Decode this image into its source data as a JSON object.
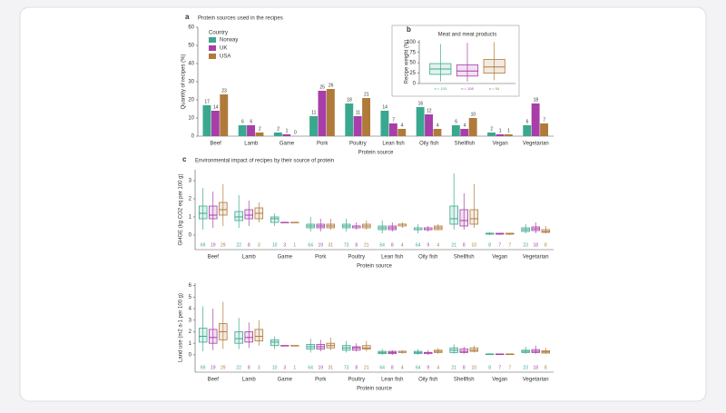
{
  "chart_data": [
    {
      "type": "bar",
      "panel": "a",
      "title": "Protein sources used in the recipes",
      "ylabel": "Quantity of recipes (%)",
      "xlabel": "Protein source",
      "legend_title": "Country",
      "legend": "upper left",
      "categories": [
        "Beef",
        "Lamb",
        "Game",
        "Pork",
        "Poultry",
        "Lean fish",
        "Oily fish",
        "Shellfish",
        "Vegan",
        "Vegetarian"
      ],
      "series": [
        {
          "name": "Norway",
          "color": "#3aa88f",
          "values": [
            17,
            6,
            2,
            11,
            18,
            14,
            16,
            6,
            2,
            6
          ]
        },
        {
          "name": "UK",
          "color": "#a83ea8",
          "values": [
            14,
            6,
            1,
            25,
            11,
            7,
            12,
            4,
            1,
            18
          ]
        },
        {
          "name": "USA",
          "color": "#b07a3a",
          "values": [
            23,
            2,
            0,
            26,
            21,
            4,
            4,
            10,
            1,
            7
          ]
        }
      ],
      "ylim": [
        0,
        60
      ],
      "yticks": [
        0,
        10,
        20,
        30,
        40,
        50,
        60
      ]
    },
    {
      "type": "box",
      "panel": "b",
      "title": "Meat and meat products",
      "ylabel": "Recipe weight (%)",
      "series": [
        {
          "name": "Norway",
          "color": "#3aa88f",
          "values": [
            [
              5,
              22,
              35,
              48,
              95
            ]
          ],
          "n": [
            "n = 103"
          ]
        },
        {
          "name": "UK",
          "color": "#a83ea8",
          "values": [
            [
              5,
              18,
              30,
              45,
              98
            ]
          ],
          "n": [
            "n = 108"
          ]
        },
        {
          "name": "USA",
          "color": "#b07a3a",
          "values": [
            [
              8,
              25,
              40,
              58,
              100
            ]
          ],
          "n": [
            "n = 54"
          ]
        }
      ],
      "ylim": [
        0,
        105
      ],
      "yticks": [
        0,
        25,
        50,
        75,
        100
      ]
    },
    {
      "type": "box",
      "panel": "c",
      "title": "Environmental impact of recipes by their source of protein",
      "ylabel": "GHGE (kg CO2 eq per 100 g)",
      "xlabel": "Protein source",
      "categories": [
        "Beef",
        "Lamb",
        "Game",
        "Pork",
        "Poultry",
        "Lean fish",
        "Oily fish",
        "Shellfish",
        "Vegan",
        "Vegetarian"
      ],
      "series": [
        {
          "name": "Norway",
          "color": "#3aa88f",
          "n": [
            "69",
            "22",
            "10",
            "64",
            "73",
            "64",
            "64",
            "21",
            "8",
            "23"
          ],
          "values": [
            [
              0.3,
              0.9,
              1.2,
              1.6,
              2.6
            ],
            [
              0.4,
              0.8,
              1.0,
              1.3,
              2.2
            ],
            [
              0.5,
              0.7,
              0.9,
              1.0,
              1.2
            ],
            [
              0.2,
              0.4,
              0.5,
              0.6,
              1.0
            ],
            [
              0.2,
              0.4,
              0.5,
              0.6,
              0.9
            ],
            [
              0.1,
              0.3,
              0.4,
              0.5,
              0.8
            ],
            [
              0.1,
              0.3,
              0.3,
              0.4,
              0.6
            ],
            [
              0.3,
              0.6,
              0.9,
              1.6,
              3.4
            ],
            [
              0.0,
              0.05,
              0.1,
              0.1,
              0.15
            ],
            [
              0.1,
              0.2,
              0.3,
              0.4,
              0.6
            ]
          ]
        },
        {
          "name": "UK",
          "color": "#a83ea8",
          "n": [
            "19",
            "8",
            "3",
            "19",
            "8",
            "8",
            "9",
            "8",
            "7",
            "18"
          ],
          "values": [
            [
              0.4,
              0.9,
              1.1,
              1.6,
              2.4
            ],
            [
              0.5,
              0.9,
              1.1,
              1.4,
              1.9
            ],
            [
              0.7,
              0.7,
              0.7,
              0.7,
              0.7
            ],
            [
              0.2,
              0.4,
              0.5,
              0.6,
              0.9
            ],
            [
              0.3,
              0.4,
              0.5,
              0.5,
              0.7
            ],
            [
              0.2,
              0.3,
              0.4,
              0.5,
              0.7
            ],
            [
              0.2,
              0.3,
              0.3,
              0.4,
              0.5
            ],
            [
              0.3,
              0.5,
              0.8,
              1.4,
              2.3
            ],
            [
              0.0,
              0.05,
              0.08,
              0.1,
              0.12
            ],
            [
              0.1,
              0.25,
              0.35,
              0.45,
              0.7
            ]
          ]
        },
        {
          "name": "USA",
          "color": "#b07a3a",
          "n": [
            "29",
            "3",
            "1",
            "31",
            "21",
            "4",
            "4",
            "10",
            "7",
            "8"
          ],
          "values": [
            [
              0.5,
              1.1,
              1.4,
              1.8,
              2.8
            ],
            [
              0.7,
              0.9,
              1.2,
              1.5,
              1.8
            ],
            [
              0.7,
              0.7,
              0.7,
              0.7,
              0.7
            ],
            [
              0.3,
              0.4,
              0.5,
              0.6,
              0.9
            ],
            [
              0.3,
              0.4,
              0.5,
              0.6,
              0.8
            ],
            [
              0.4,
              0.5,
              0.6,
              0.6,
              0.7
            ],
            [
              0.3,
              0.3,
              0.4,
              0.5,
              0.6
            ],
            [
              0.4,
              0.6,
              0.9,
              1.4,
              2.8
            ],
            [
              0.0,
              0.05,
              0.08,
              0.1,
              0.12
            ],
            [
              0.1,
              0.15,
              0.2,
              0.3,
              0.5
            ]
          ]
        }
      ],
      "ylim": [
        -0.8,
        3.6
      ],
      "yticks": [
        0,
        1,
        2,
        3
      ]
    },
    {
      "type": "box",
      "ylabel": "Land use (m2 a-1 per 100 g)",
      "xlabel": "Protein source",
      "categories": [
        "Beef",
        "Lamb",
        "Game",
        "Pork",
        "Poultry",
        "Lean fish",
        "Oily fish",
        "Shellfish",
        "Vegan",
        "Vegetarian"
      ],
      "series": [
        {
          "name": "Norway",
          "color": "#3aa88f",
          "n": [
            "69",
            "22",
            "10",
            "64",
            "73",
            "64",
            "64",
            "21",
            "8",
            "23"
          ],
          "values": [
            [
              0.3,
              1.1,
              1.6,
              2.3,
              4.2
            ],
            [
              0.5,
              1.0,
              1.4,
              2.0,
              3.2
            ],
            [
              0.5,
              0.8,
              1.1,
              1.3,
              1.6
            ],
            [
              0.2,
              0.5,
              0.7,
              0.9,
              1.4
            ],
            [
              0.2,
              0.4,
              0.6,
              0.8,
              1.2
            ],
            [
              0.0,
              0.1,
              0.2,
              0.3,
              0.5
            ],
            [
              0.0,
              0.1,
              0.2,
              0.3,
              0.5
            ],
            [
              0.1,
              0.2,
              0.4,
              0.6,
              0.9
            ],
            [
              0,
              0.02,
              0.05,
              0.08,
              0.1
            ],
            [
              0.1,
              0.2,
              0.3,
              0.4,
              0.7
            ]
          ]
        },
        {
          "name": "UK",
          "color": "#a83ea8",
          "n": [
            "19",
            "8",
            "3",
            "19",
            "8",
            "8",
            "9",
            "8",
            "7",
            "18"
          ],
          "values": [
            [
              0.4,
              1.0,
              1.5,
              2.2,
              4.0
            ],
            [
              0.6,
              1.1,
              1.5,
              2.0,
              2.8
            ],
            [
              0.8,
              0.8,
              0.8,
              0.8,
              0.8
            ],
            [
              0.3,
              0.5,
              0.7,
              0.9,
              1.3
            ],
            [
              0.3,
              0.4,
              0.6,
              0.7,
              1.0
            ],
            [
              0.0,
              0.1,
              0.2,
              0.3,
              0.4
            ],
            [
              0.0,
              0.1,
              0.2,
              0.2,
              0.4
            ],
            [
              0.1,
              0.2,
              0.3,
              0.5,
              0.7
            ],
            [
              0,
              0.02,
              0.05,
              0.08,
              0.1
            ],
            [
              0.1,
              0.2,
              0.3,
              0.45,
              0.8
            ]
          ]
        },
        {
          "name": "USA",
          "color": "#b07a3a",
          "n": [
            "29",
            "3",
            "1",
            "31",
            "21",
            "4",
            "4",
            "10",
            "7",
            "8"
          ],
          "values": [
            [
              0.5,
              1.3,
              2.0,
              2.7,
              4.6
            ],
            [
              0.8,
              1.2,
              1.6,
              2.2,
              3.0
            ],
            [
              0.8,
              0.8,
              0.8,
              0.8,
              0.8
            ],
            [
              0.4,
              0.6,
              0.8,
              1.0,
              1.5
            ],
            [
              0.3,
              0.5,
              0.6,
              0.8,
              1.2
            ],
            [
              0.1,
              0.2,
              0.3,
              0.3,
              0.4
            ],
            [
              0.1,
              0.2,
              0.3,
              0.4,
              0.6
            ],
            [
              0.2,
              0.3,
              0.4,
              0.6,
              0.8
            ],
            [
              0,
              0.02,
              0.05,
              0.08,
              0.1
            ],
            [
              0.1,
              0.15,
              0.25,
              0.35,
              0.6
            ]
          ]
        }
      ],
      "ylim": [
        -1.5,
        6.2
      ],
      "yticks": [
        0,
        1,
        2,
        3,
        4,
        5,
        6
      ]
    }
  ]
}
